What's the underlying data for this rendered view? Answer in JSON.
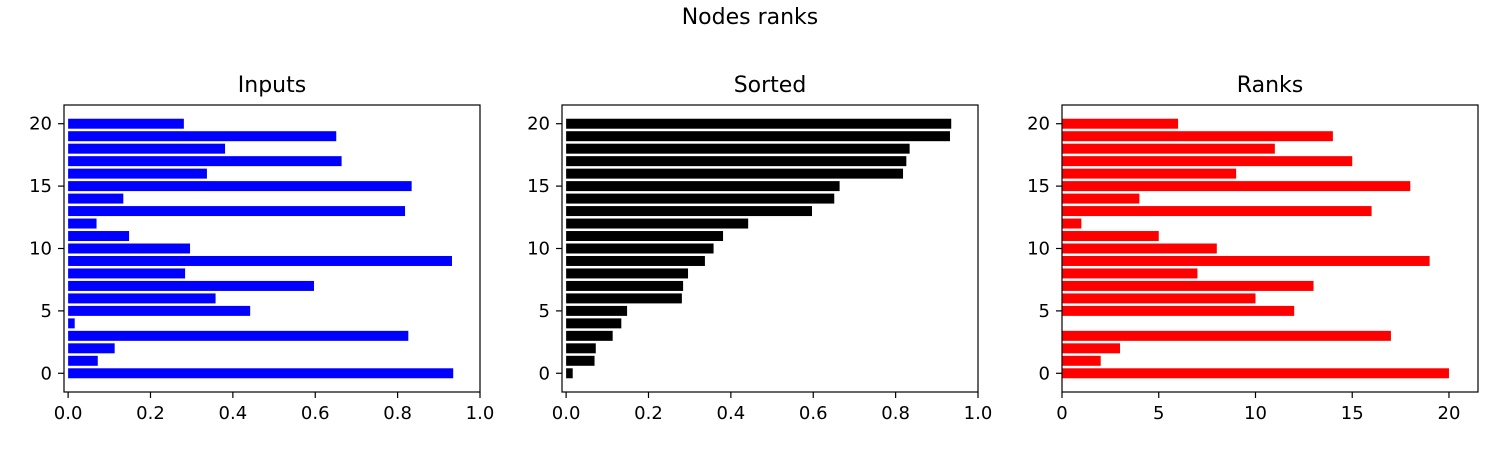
{
  "figure": {
    "title": "Nodes ranks"
  },
  "chart_data": [
    {
      "type": "bar",
      "orientation": "horizontal",
      "title": "Inputs",
      "xlabel": "",
      "ylabel": "",
      "color": "#0000ff",
      "xlim": [
        -0.01,
        1.0
      ],
      "ylim": [
        -1.5,
        21.5
      ],
      "xticks": [
        0.0,
        0.2,
        0.4,
        0.6,
        0.8,
        1.0
      ],
      "xtick_labels": [
        "0.0",
        "0.2",
        "0.4",
        "0.6",
        "0.8",
        "1.0"
      ],
      "yticks": [
        0,
        5,
        10,
        15,
        20
      ],
      "ytick_labels": [
        "0",
        "5",
        "10",
        "15",
        "20"
      ],
      "categories": [
        0,
        1,
        2,
        3,
        4,
        5,
        6,
        7,
        8,
        9,
        10,
        11,
        12,
        13,
        14,
        15,
        16,
        17,
        18,
        19,
        20
      ],
      "values": [
        0.935,
        0.072,
        0.113,
        0.826,
        0.016,
        0.442,
        0.358,
        0.597,
        0.284,
        0.932,
        0.296,
        0.148,
        0.069,
        0.818,
        0.134,
        0.834,
        0.337,
        0.664,
        0.381,
        0.651,
        0.281
      ]
    },
    {
      "type": "bar",
      "orientation": "horizontal",
      "title": "Sorted",
      "xlabel": "",
      "ylabel": "",
      "color": "#000000",
      "xlim": [
        -0.01,
        1.0
      ],
      "ylim": [
        -1.5,
        21.5
      ],
      "xticks": [
        0.0,
        0.2,
        0.4,
        0.6,
        0.8,
        1.0
      ],
      "xtick_labels": [
        "0.0",
        "0.2",
        "0.4",
        "0.6",
        "0.8",
        "1.0"
      ],
      "yticks": [
        0,
        5,
        10,
        15,
        20
      ],
      "ytick_labels": [
        "0",
        "5",
        "10",
        "15",
        "20"
      ],
      "categories": [
        0,
        1,
        2,
        3,
        4,
        5,
        6,
        7,
        8,
        9,
        10,
        11,
        12,
        13,
        14,
        15,
        16,
        17,
        18,
        19,
        20
      ],
      "values": [
        0.016,
        0.069,
        0.072,
        0.113,
        0.134,
        0.148,
        0.281,
        0.284,
        0.296,
        0.337,
        0.358,
        0.381,
        0.442,
        0.597,
        0.651,
        0.664,
        0.818,
        0.826,
        0.834,
        0.932,
        0.935
      ]
    },
    {
      "type": "bar",
      "orientation": "horizontal",
      "title": "Ranks",
      "xlabel": "",
      "ylabel": "",
      "color": "#ff0000",
      "xlim": [
        0,
        21.5
      ],
      "ylim": [
        -1.5,
        21.5
      ],
      "xticks": [
        0,
        5,
        10,
        15,
        20
      ],
      "xtick_labels": [
        "0",
        "5",
        "10",
        "15",
        "20"
      ],
      "yticks": [
        0,
        5,
        10,
        15,
        20
      ],
      "ytick_labels": [
        "0",
        "5",
        "10",
        "15",
        "20"
      ],
      "categories": [
        0,
        1,
        2,
        3,
        4,
        5,
        6,
        7,
        8,
        9,
        10,
        11,
        12,
        13,
        14,
        15,
        16,
        17,
        18,
        19,
        20
      ],
      "values": [
        20,
        2,
        3,
        17,
        0,
        12,
        10,
        13,
        7,
        19,
        8,
        5,
        1,
        16,
        4,
        18,
        9,
        15,
        11,
        14,
        6
      ]
    }
  ]
}
